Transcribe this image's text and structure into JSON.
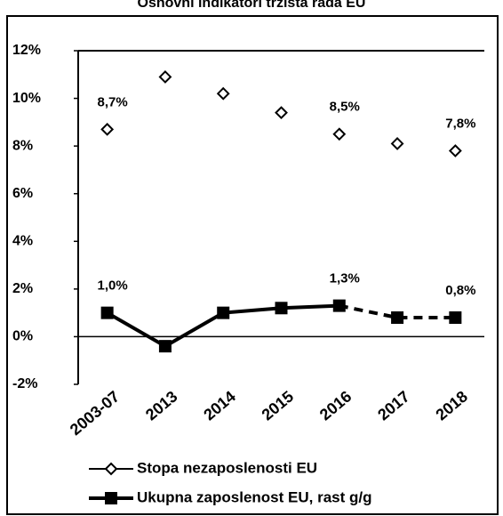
{
  "chart_data": {
    "type": "line",
    "title": "Osnovni indikatori tržišta rada EU",
    "categories": [
      "2003-07",
      "2013",
      "2014",
      "2015",
      "2016",
      "2017",
      "2018"
    ],
    "series": [
      {
        "name": "Stopa nezaposlenosti EU",
        "color": "#000000",
        "marker": "diamond",
        "values": [
          8.7,
          10.9,
          10.2,
          9.4,
          8.5,
          8.1,
          7.8
        ],
        "value_labels": [
          "8,7%",
          null,
          null,
          null,
          "8,5%",
          null,
          "7,8%"
        ]
      },
      {
        "name": "Ukupna zaposlenost EU, rast g/g",
        "color": "#000000",
        "marker": "square",
        "values": [
          1.0,
          -0.4,
          1.0,
          1.2,
          1.3,
          0.8,
          0.8
        ],
        "value_labels": [
          "1,0%",
          null,
          null,
          null,
          "1,3%",
          null,
          "0,8%"
        ],
        "dash_from": 4
      }
    ],
    "ylim": [
      -2,
      12
    ],
    "yticks": [
      {
        "value": -2,
        "label": "-2%"
      },
      {
        "value": 0,
        "label": "0%"
      },
      {
        "value": 2,
        "label": "2%"
      },
      {
        "value": 4,
        "label": "4%"
      },
      {
        "value": 6,
        "label": "6%"
      },
      {
        "value": 8,
        "label": "8%"
      },
      {
        "value": 10,
        "label": "10%"
      },
      {
        "value": 12,
        "label": "12%"
      }
    ],
    "legend": "bottom"
  }
}
